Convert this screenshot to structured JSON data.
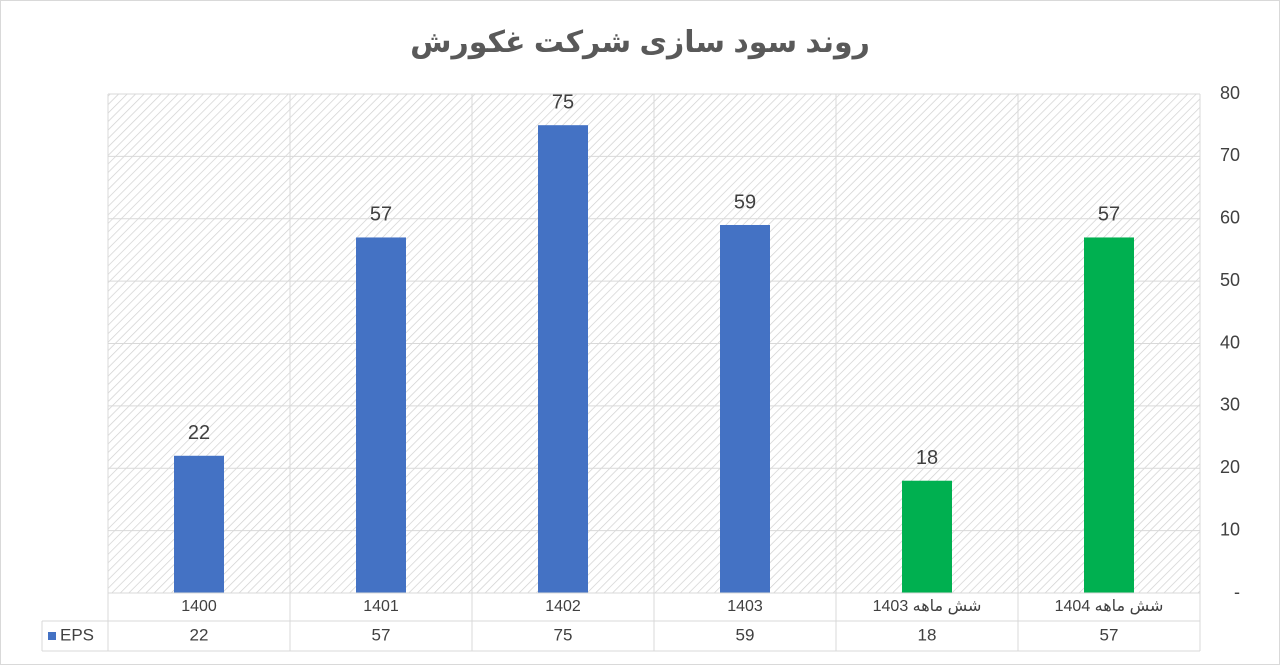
{
  "chart_data": {
    "type": "bar",
    "title": "روند سود سازی شرکت غکورش",
    "categories": [
      "1400",
      "1401",
      "1402",
      "1403",
      "شش  ماهه 1403",
      "شش ماهه 1404"
    ],
    "series": [
      {
        "name": "EPS",
        "color": "#4472c4",
        "colors": [
          "#4472c4",
          "#4472c4",
          "#4472c4",
          "#4472c4",
          "#00b050",
          "#00b050"
        ],
        "values": [
          22,
          57,
          75,
          59,
          18,
          57
        ]
      }
    ],
    "ylim": [
      0,
      80
    ],
    "yticks": [
      {
        "value": 0,
        "label": "-"
      },
      10,
      20,
      30,
      40,
      50,
      60,
      70,
      80
    ],
    "y_axis_side": "right",
    "grid": true,
    "data_table": true
  }
}
